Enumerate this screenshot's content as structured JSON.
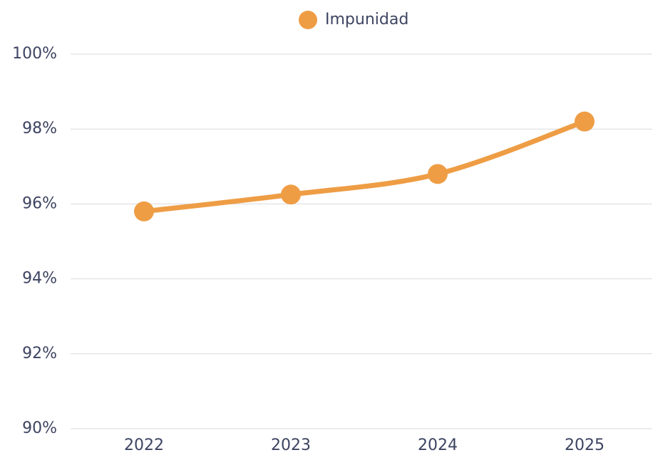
{
  "chart_data": {
    "type": "line",
    "categories": [
      "2022",
      "2023",
      "2024",
      "2025"
    ],
    "series": [
      {
        "name": "Impunidad",
        "color": "#ee9d45",
        "values": [
          95.8,
          96.25,
          96.8,
          98.2
        ]
      }
    ],
    "ylim": [
      90,
      100
    ],
    "yticks": [
      {
        "value": 90,
        "label": "90%"
      },
      {
        "value": 92,
        "label": "92%"
      },
      {
        "value": 94,
        "label": "94%"
      },
      {
        "value": 96,
        "label": "96%"
      },
      {
        "value": 98,
        "label": "98%"
      },
      {
        "value": 100,
        "label": "100%"
      }
    ],
    "grid": true,
    "legend": "top"
  }
}
